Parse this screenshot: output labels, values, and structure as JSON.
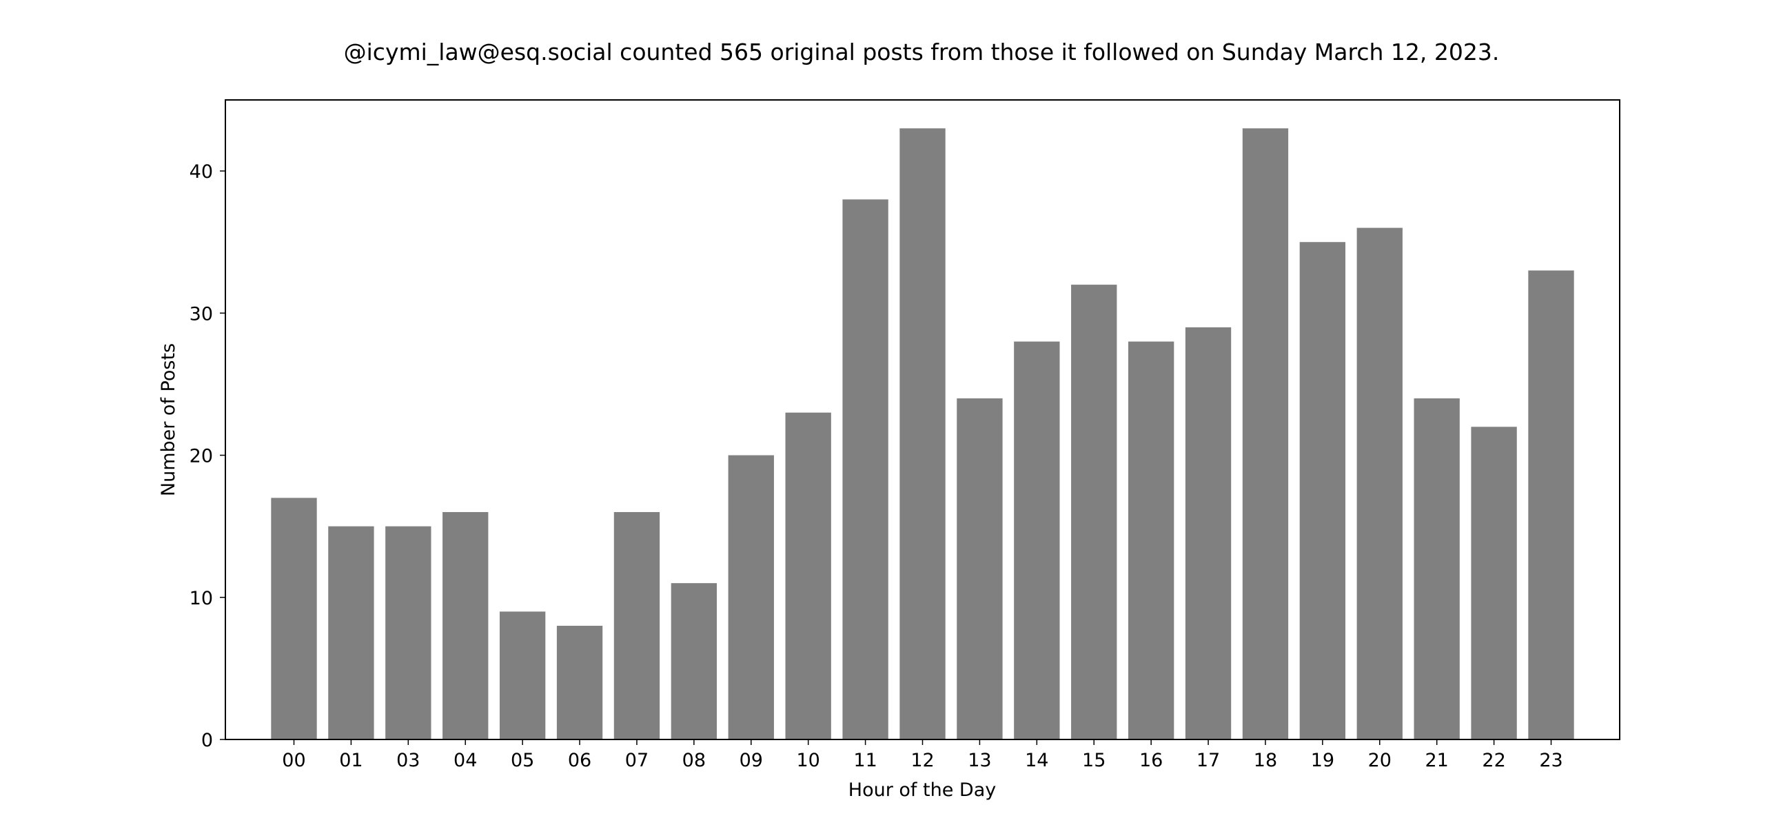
{
  "chart_data": {
    "type": "bar",
    "title": "@icymi_law@esq.social counted 565 original posts from those it followed on Sunday March 12, 2023.",
    "xlabel": "Hour of the Day",
    "ylabel": "Number of Posts",
    "categories": [
      "00",
      "01",
      "03",
      "04",
      "05",
      "06",
      "07",
      "08",
      "09",
      "10",
      "11",
      "12",
      "13",
      "14",
      "15",
      "16",
      "17",
      "18",
      "19",
      "20",
      "21",
      "22",
      "23"
    ],
    "values": [
      17,
      15,
      15,
      16,
      9,
      8,
      16,
      11,
      20,
      23,
      38,
      43,
      24,
      28,
      32,
      28,
      29,
      43,
      35,
      36,
      24,
      22,
      33
    ],
    "ylim": [
      0,
      45
    ],
    "yticks": [
      0,
      10,
      20,
      30,
      40
    ],
    "bar_color": "#808080",
    "grid": false,
    "legend": "none"
  }
}
